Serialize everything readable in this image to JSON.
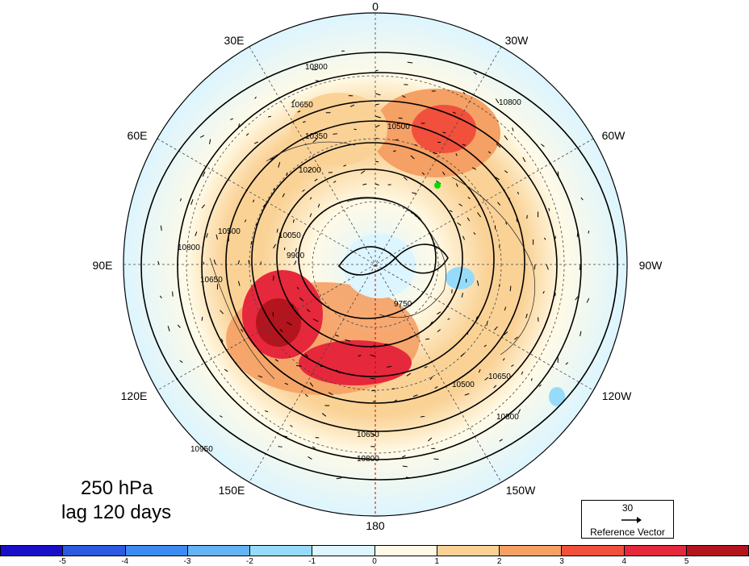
{
  "map": {
    "projection": "polar stereographic (north pole)",
    "field_colors_description": "shaded anomaly",
    "longitude_labels": [
      {
        "text": "0",
        "lon": 0
      },
      {
        "text": "30W",
        "lon": -30
      },
      {
        "text": "60W",
        "lon": -60
      },
      {
        "text": "90W",
        "lon": -90
      },
      {
        "text": "120W",
        "lon": -120
      },
      {
        "text": "150W",
        "lon": -150
      },
      {
        "text": "180",
        "lon": 180
      },
      {
        "text": "150E",
        "lon": 150
      },
      {
        "text": "120E",
        "lon": 120
      },
      {
        "text": "90E",
        "lon": 90
      },
      {
        "text": "60E",
        "lon": 60
      },
      {
        "text": "30E",
        "lon": 30
      }
    ],
    "contour_labels": [
      "10800",
      "10650",
      "10500",
      "10350",
      "10200",
      "10050",
      "9900",
      "9750",
      "10950"
    ],
    "marker_color": "#00e000"
  },
  "title": {
    "line1": "250 hPa",
    "line2": "lag 120 days"
  },
  "reference_vector": {
    "value": "30",
    "label": "Reference Vector"
  },
  "colorbar": {
    "colors": [
      "#1a0fc8",
      "#2e5ae0",
      "#3c8cf0",
      "#64b4f5",
      "#96dcfa",
      "#dcf5ff",
      "#fffae6",
      "#fad296",
      "#f5a064",
      "#f0503c",
      "#e6283c",
      "#b4141e"
    ],
    "ticks": [
      "-5",
      "-4",
      "-3",
      "-2",
      "-1",
      "0",
      "1",
      "2",
      "3",
      "4",
      "5"
    ]
  }
}
